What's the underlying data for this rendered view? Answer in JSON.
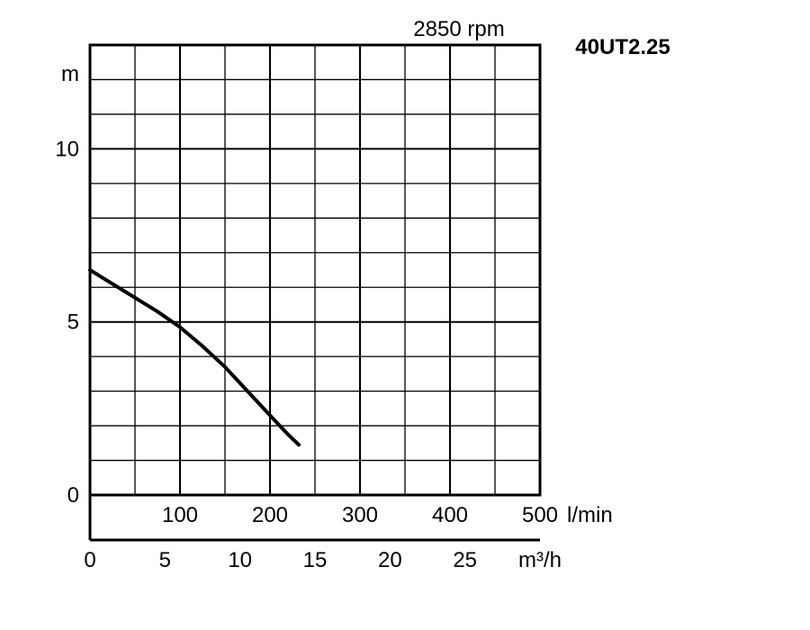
{
  "chart_data": {
    "type": "line",
    "model": "40UT2.25",
    "speed_label": "2850 rpm",
    "y_unit": "m",
    "y_ticks": [
      0,
      5,
      10
    ],
    "ylim": [
      0,
      13
    ],
    "x_unit_primary": "l/min",
    "x_ticks_primary": [
      100,
      200,
      300,
      400,
      500
    ],
    "xlim_primary": [
      0,
      500
    ],
    "x_unit_secondary": "m³/h",
    "x_ticks_secondary": [
      0,
      5,
      10,
      15,
      20,
      25
    ],
    "grid": true,
    "series": [
      {
        "x": [
          0,
          25,
          50,
          75,
          100,
          125,
          150,
          175,
          200,
          220,
          232
        ],
        "y": [
          6.5,
          6.1,
          5.7,
          5.3,
          4.85,
          4.3,
          3.7,
          3.0,
          2.3,
          1.75,
          1.45
        ]
      }
    ],
    "colors": {
      "line": "#000000",
      "grid": "#000000"
    }
  }
}
